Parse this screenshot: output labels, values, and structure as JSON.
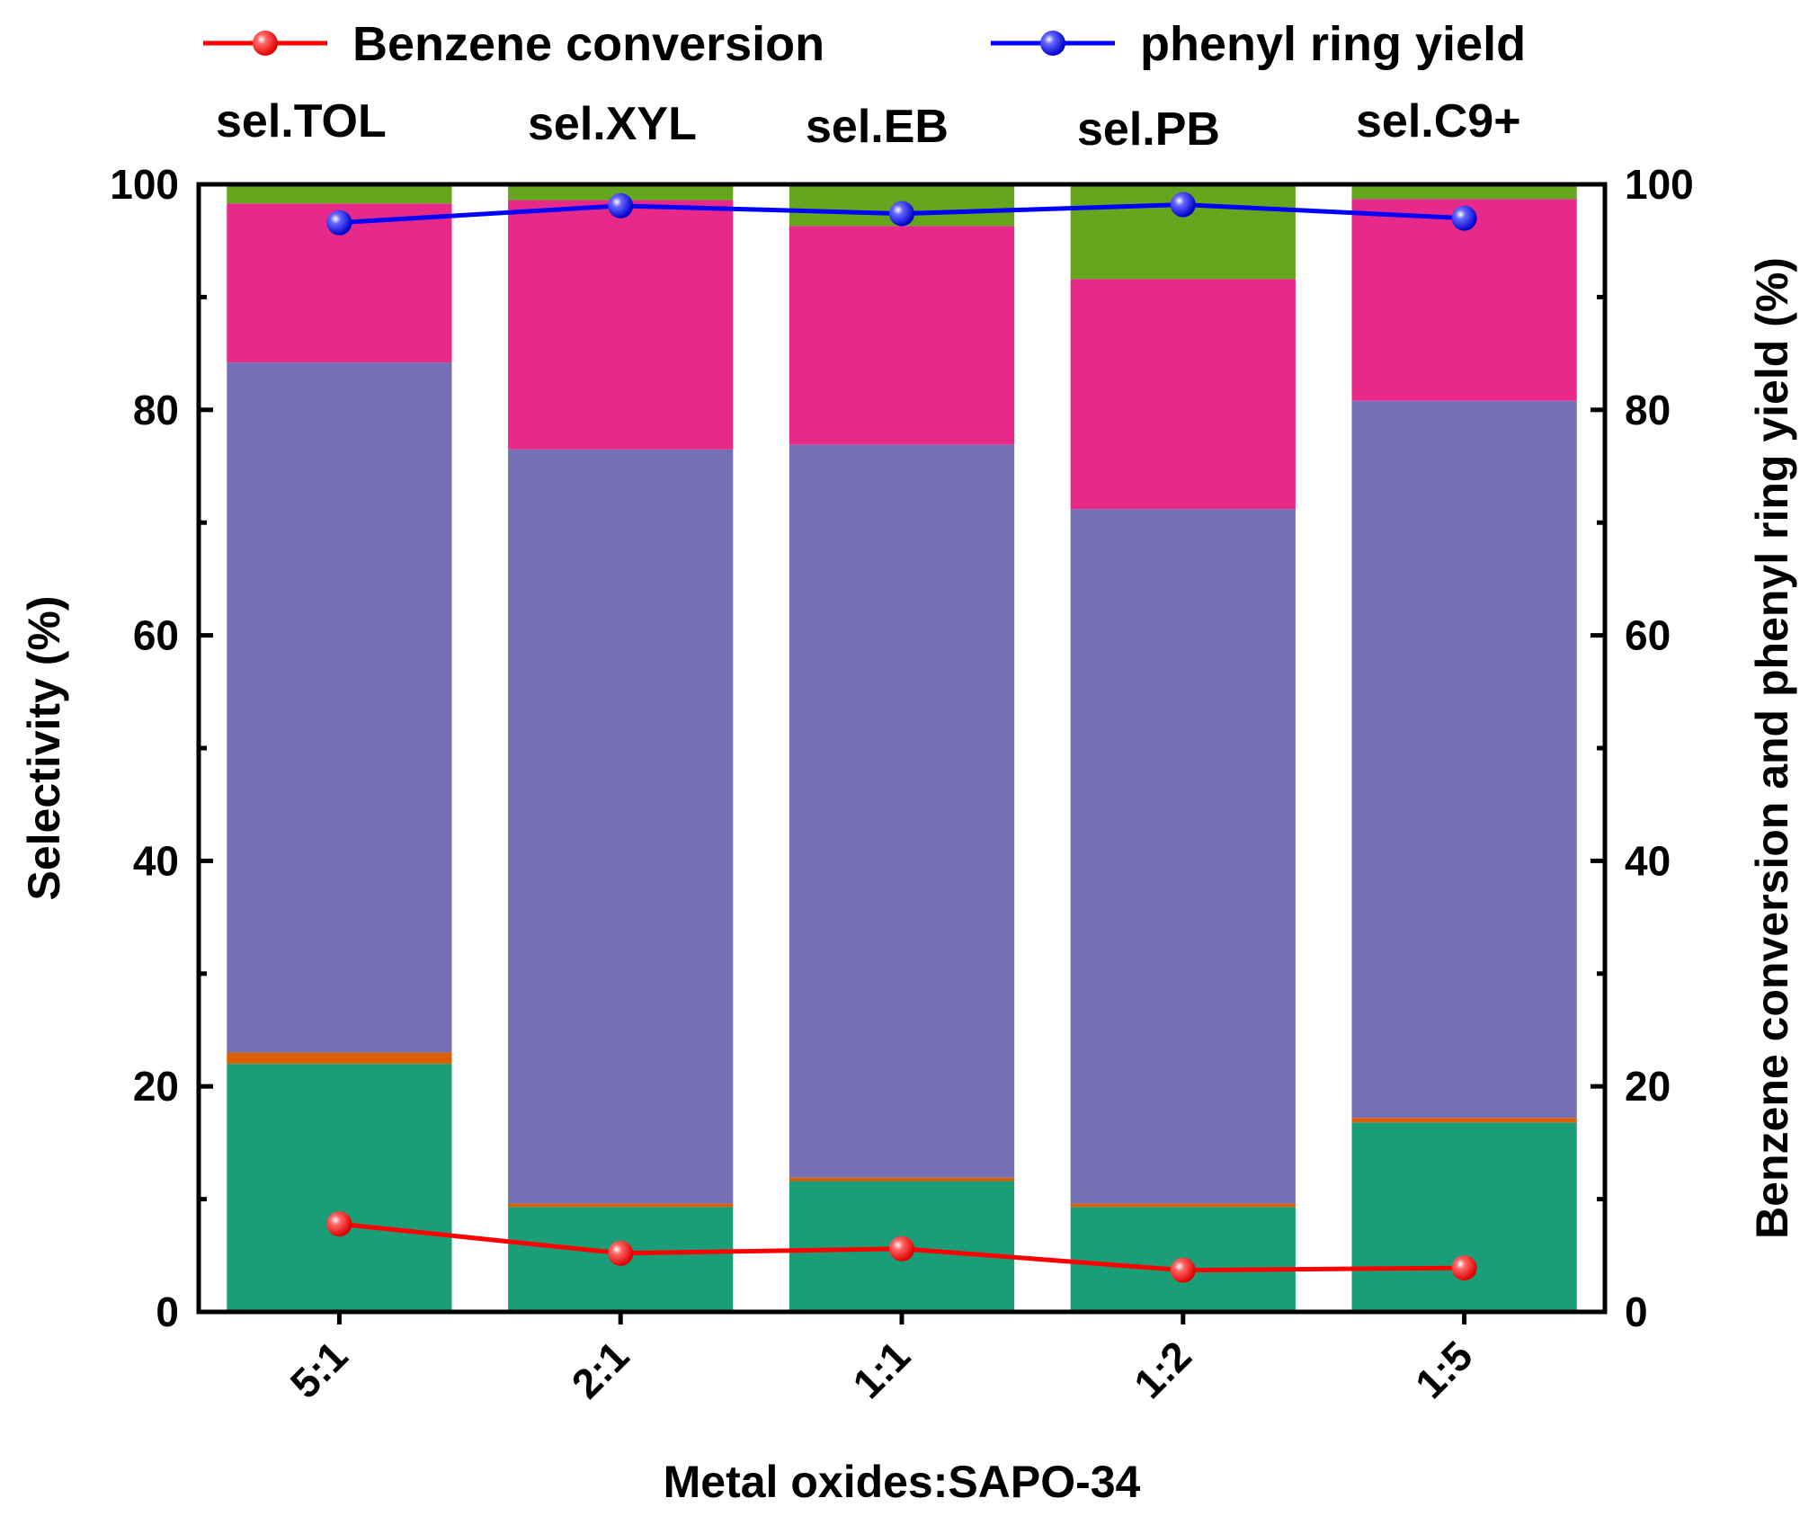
{
  "chart_data": {
    "type": "bar",
    "stacked": true,
    "xlabel": "Metal oxides:SAPO-34",
    "ylabel": "Selectivity (%)",
    "y2label": "Benzene conversion and phenyl ring yield (%)",
    "ylim": [
      0,
      100
    ],
    "y2lim": [
      0,
      100
    ],
    "yticks": [
      0,
      20,
      40,
      60,
      80,
      100
    ],
    "y2ticks": [
      0,
      20,
      40,
      60,
      80,
      100
    ],
    "categories": [
      "5:1",
      "2:1",
      "1:1",
      "1:2",
      "1:5"
    ],
    "series": [
      {
        "name": "sel.TOL",
        "color": "#1b9e77",
        "values": [
          22.0,
          9.3,
          11.6,
          9.3,
          16.8
        ]
      },
      {
        "name": "sel.XYL",
        "color": "#d95f02",
        "values": [
          1.0,
          0.3,
          0.3,
          0.3,
          0.4
        ]
      },
      {
        "name": "sel.EB",
        "color": "#7570b3",
        "values": [
          61.2,
          66.9,
          65.0,
          61.6,
          63.6
        ]
      },
      {
        "name": "sel.PB",
        "color": "#e7298a",
        "values": [
          14.1,
          22.1,
          19.4,
          20.4,
          17.9
        ]
      },
      {
        "name": "sel.C9+",
        "color": "#66a61e",
        "values": [
          1.7,
          1.4,
          3.7,
          8.4,
          1.3
        ]
      }
    ],
    "lines": [
      {
        "name": "Benzene conversion",
        "color": "#ff0000",
        "axis": "right",
        "values": [
          7.8,
          5.2,
          5.6,
          3.7,
          3.9
        ]
      },
      {
        "name": "phenyl ring yield",
        "color": "#0000ff",
        "axis": "right",
        "values": [
          96.6,
          98.1,
          97.4,
          98.2,
          97.0
        ]
      }
    ]
  }
}
